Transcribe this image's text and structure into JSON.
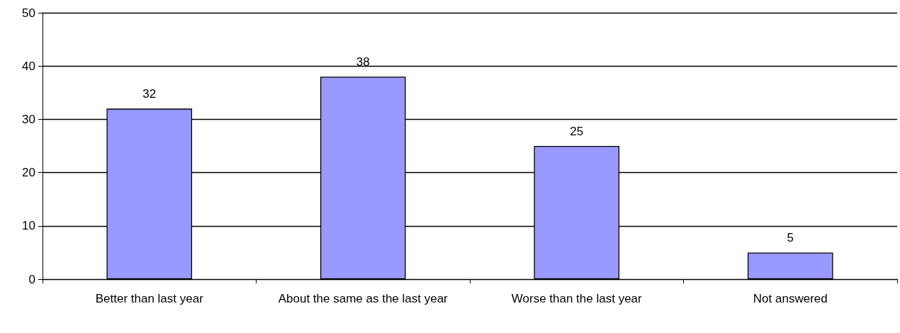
{
  "chart_data": {
    "type": "bar",
    "categories": [
      "Better than last year",
      "About the same as the last year",
      "Worse than the last year",
      "Not answered"
    ],
    "values": [
      32,
      38,
      25,
      5
    ],
    "color": "#9999ff",
    "ylim": [
      0,
      50
    ],
    "yticks": [
      0,
      10,
      20,
      30,
      40,
      50
    ],
    "grid": "y",
    "data_labels": true
  }
}
